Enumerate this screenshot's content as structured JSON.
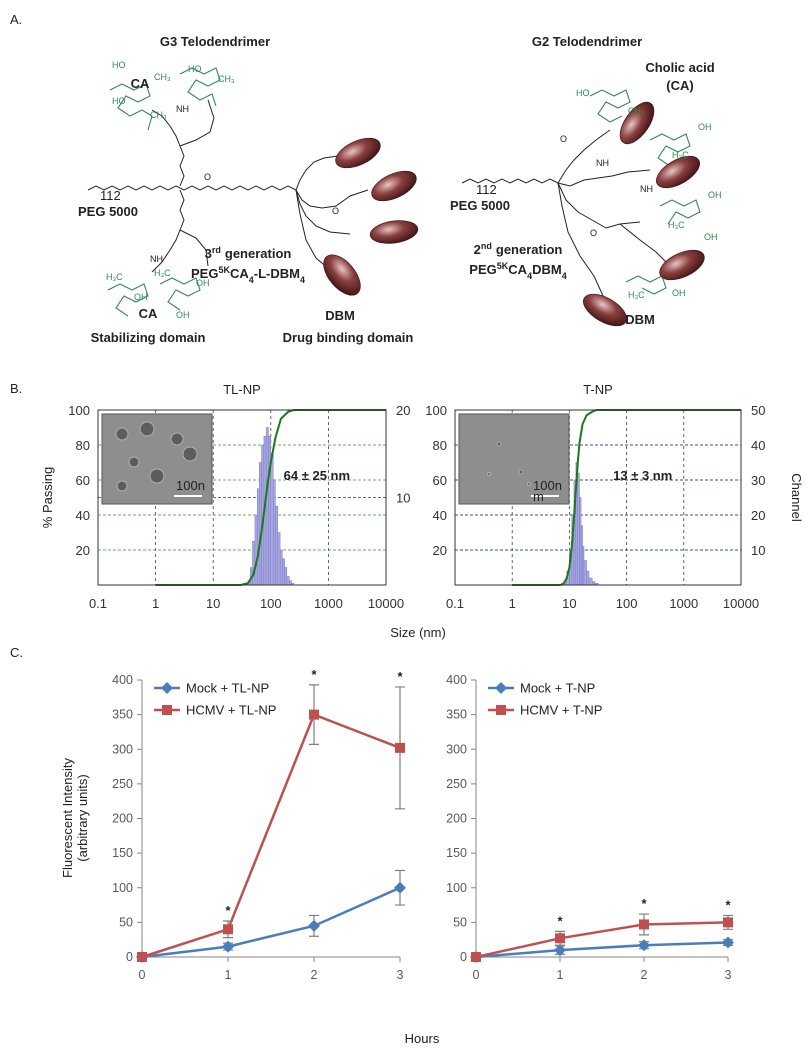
{
  "figure": {
    "panel_a_label": "A.",
    "panel_b_label": "B.",
    "panel_c_label": "C.",
    "size_label": "Size (nm)",
    "intensity_label": [
      "Fluorescent Intensity",
      "(arbitrary units)"
    ],
    "hours_label": "Hours"
  },
  "structures": [
    {
      "title": "G3 Telodendrimer",
      "peg": "PEG 5000",
      "peg_repeat": "112",
      "generation": [
        "3",
        "rd",
        "generation"
      ],
      "formula": [
        "PEG",
        "5K",
        "CA",
        "4",
        "-L-DBM",
        "4"
      ],
      "labels": [
        "CA",
        "CA",
        "Stabilizing domain",
        "DBM",
        "Drug binding domain"
      ],
      "atoms": [
        "HO",
        "CH₃",
        "HO",
        "CH₃",
        "HO",
        "CH₃",
        "H₃C",
        "OH",
        "H₃C",
        "OH",
        "OH",
        "NH",
        "NH",
        "O",
        "O"
      ]
    },
    {
      "title": "G2 Telodendrimer",
      "peg": "PEG 5000",
      "peg_repeat": "112",
      "generation": [
        "2",
        "nd",
        "generation"
      ],
      "formula": [
        "PEG",
        "5K",
        "CA",
        "4",
        "DBM",
        "4"
      ],
      "labels": [
        "Cholic acid",
        "(CA)",
        "DBM"
      ],
      "atoms": [
        "HO",
        "CH₃",
        "OH",
        "H₃C",
        "OH",
        "H₃C",
        "OH",
        "H₃C",
        "OH",
        "NH",
        "NH",
        "O",
        "O"
      ]
    }
  ],
  "chart_data": [
    {
      "type": "histogram",
      "title": "TL-NP",
      "ylabel": "% Passing",
      "xscale": "log",
      "xlim": [
        0.1,
        10000
      ],
      "xticks": [
        0.1,
        1,
        10,
        100,
        1000,
        10000
      ],
      "ylim": [
        0,
        100
      ],
      "yticks": [
        20,
        40,
        60,
        80,
        100
      ],
      "y2lim": [
        0,
        20
      ],
      "y2ticks": [
        10,
        20
      ],
      "grid": true,
      "histogram": {
        "color": "#a9a9e0",
        "axis": "y2",
        "bins": [
          40,
          44,
          48,
          53,
          58,
          63,
          69,
          76,
          83,
          91,
          100,
          110,
          120,
          132,
          145,
          158,
          174,
          190,
          209,
          229,
          251
        ],
        "values": [
          0.5,
          2,
          5,
          8,
          11,
          14,
          16,
          17,
          18,
          17,
          15,
          12,
          9,
          6,
          4,
          3,
          2,
          1,
          0.5,
          0.2
        ]
      },
      "cumulative": {
        "color": "#1a7a1a",
        "x": [
          1,
          30,
          40,
          50,
          60,
          70,
          80,
          90,
          100,
          120,
          150,
          200,
          250,
          10000
        ],
        "values": [
          0,
          0,
          1,
          6,
          17,
          32,
          47,
          60,
          70,
          84,
          95,
          99,
          100,
          100
        ]
      },
      "annotation": "64 ± 25 nm",
      "inset_label": [
        "100n"
      ]
    },
    {
      "type": "histogram",
      "title": "T-NP",
      "y2label": "Channel",
      "xscale": "log",
      "xlim": [
        0.1,
        10000
      ],
      "xticks": [
        0.1,
        1,
        10,
        100,
        1000,
        10000
      ],
      "ylim": [
        0,
        100
      ],
      "yticks": [
        20,
        40,
        60,
        80,
        100
      ],
      "y2lim": [
        0,
        50
      ],
      "y2ticks": [
        10,
        20,
        30,
        40,
        50
      ],
      "grid": true,
      "histogram": {
        "color": "#a9a9e0",
        "axis": "y2",
        "bins": [
          8,
          9,
          10,
          11,
          12,
          13,
          14,
          15,
          16,
          17,
          18,
          20,
          22,
          25,
          28,
          32
        ],
        "values": [
          1,
          4,
          10,
          20,
          30,
          35,
          32,
          25,
          17,
          11,
          7,
          4,
          2,
          1,
          0.5
        ]
      },
      "cumulative": {
        "color": "#1a7a1a",
        "x": [
          1,
          7,
          8,
          9,
          10,
          11,
          12,
          13,
          14,
          15,
          17,
          20,
          25,
          30,
          10000
        ],
        "values": [
          0,
          0,
          1,
          4,
          10,
          22,
          38,
          55,
          70,
          81,
          92,
          97,
          99,
          100,
          100
        ]
      },
      "annotation": "13 ± 3 nm",
      "inset_label": [
        "100n",
        "m"
      ]
    },
    {
      "type": "line",
      "x": [
        0,
        1,
        2,
        3
      ],
      "xlim": [
        0,
        3
      ],
      "xticks": [
        0,
        1,
        2,
        3
      ],
      "ylim": [
        0,
        400
      ],
      "yticks": [
        0,
        50,
        100,
        150,
        200,
        250,
        300,
        350,
        400
      ],
      "legend": "upper left",
      "series": [
        {
          "name": "Mock + TL-NP",
          "color": "#4a7ebb",
          "marker": "diamond",
          "values": [
            0,
            15,
            45,
            100
          ],
          "errors": [
            0,
            5,
            15,
            25
          ]
        },
        {
          "name": "HCMV + TL-NP",
          "color": "#c0504d",
          "marker": "square",
          "values": [
            0,
            40,
            350,
            302
          ],
          "errors": [
            0,
            12,
            43,
            88
          ]
        }
      ],
      "significance": {
        "x": [
          1,
          2,
          3
        ],
        "label": "*"
      }
    },
    {
      "type": "line",
      "x": [
        0,
        1,
        2,
        3
      ],
      "xlim": [
        0,
        3
      ],
      "xticks": [
        0,
        1,
        2,
        3
      ],
      "ylim": [
        0,
        400
      ],
      "yticks": [
        0,
        50,
        100,
        150,
        200,
        250,
        300,
        350,
        400
      ],
      "legend": "upper left",
      "series": [
        {
          "name": "Mock + T-NP",
          "color": "#4a7ebb",
          "marker": "diamond",
          "values": [
            0,
            10,
            17,
            21
          ],
          "errors": [
            0,
            6,
            5,
            4
          ]
        },
        {
          "name": "HCMV + T-NP",
          "color": "#c0504d",
          "marker": "square",
          "values": [
            0,
            27,
            47,
            50
          ],
          "errors": [
            0,
            10,
            15,
            10
          ]
        }
      ],
      "significance": {
        "x": [
          1,
          2,
          3
        ],
        "label": "*"
      }
    }
  ]
}
